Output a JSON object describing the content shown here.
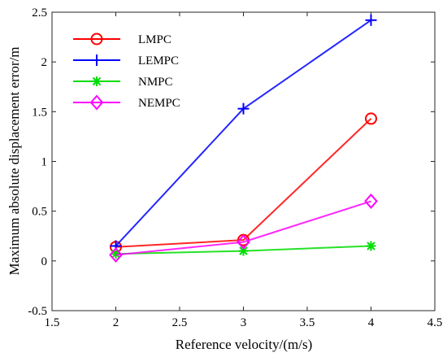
{
  "chart_data": {
    "type": "line",
    "xlabel": "Reference velocity/(m/s)",
    "ylabel": "Maximum absolute displacement error/m",
    "xlim": [
      1.5,
      4.5
    ],
    "ylim": [
      -0.5,
      2.5
    ],
    "xticks": [
      "1.5",
      "2",
      "2.5",
      "3",
      "3.5",
      "4",
      "4.5"
    ],
    "yticks": [
      "-0.5",
      "0",
      "0.5",
      "1",
      "1.5",
      "2",
      "2.5"
    ],
    "grid": false,
    "legend_position": "top-left",
    "x": [
      2,
      3,
      4
    ],
    "series": [
      {
        "name": "LMPC",
        "values": [
          0.14,
          0.21,
          1.43
        ],
        "color": "#ff0000",
        "marker": "circle"
      },
      {
        "name": "LEMPC",
        "values": [
          0.15,
          1.53,
          2.42
        ],
        "color": "#0000ff",
        "marker": "plus"
      },
      {
        "name": "NMPC",
        "values": [
          0.07,
          0.1,
          0.15
        ],
        "color": "#00dd00",
        "marker": "asterisk"
      },
      {
        "name": "NEMPC",
        "values": [
          0.06,
          0.19,
          0.6
        ],
        "color": "#ff00ff",
        "marker": "diamond"
      }
    ]
  }
}
